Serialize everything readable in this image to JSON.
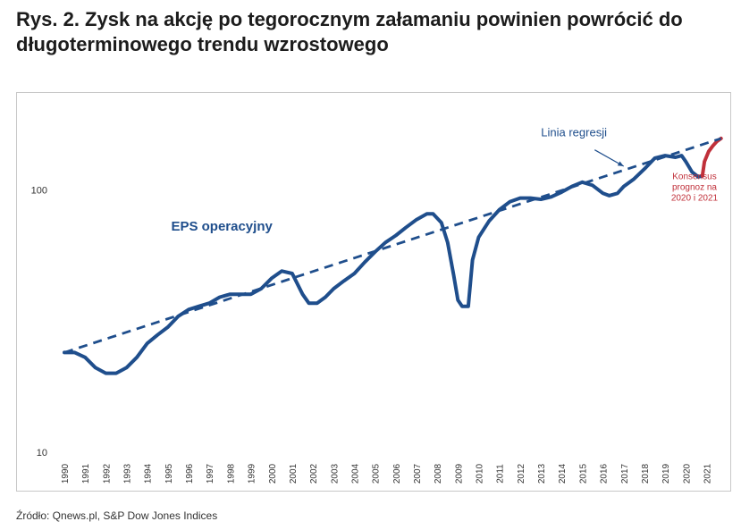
{
  "title": "Rys. 2. Zysk na akcję po tegorocznym załamaniu powinien powrócić do długoterminowego trendu wzrostowego",
  "source": "Źródło: Qnews.pl, S&P Dow Jones Indices",
  "colors": {
    "eps": "#1f4e8c",
    "consensus": "#c0303a",
    "regression": "#1f4e8c",
    "axis": "#333333"
  },
  "chart_data": {
    "type": "line",
    "yscale": "log",
    "ylim": [
      10,
      200
    ],
    "xlim": [
      1990,
      2021.8
    ],
    "y_ticks": [
      {
        "value": 10,
        "label": "10"
      },
      {
        "value": 100,
        "label": "100"
      }
    ],
    "x_ticks": [
      "1990",
      "1991",
      "1992",
      "1993",
      "1994",
      "1995",
      "1996",
      "1997",
      "1998",
      "1999",
      "2000",
      "2001",
      "2002",
      "2003",
      "2004",
      "2005",
      "2006",
      "2007",
      "2008",
      "2009",
      "2010",
      "2011",
      "2012",
      "2013",
      "2014",
      "2015",
      "2016",
      "2017",
      "2018",
      "2019",
      "2020",
      "2021"
    ],
    "grid": false,
    "series": [
      {
        "name": "EPS operacyjny",
        "style": "solid",
        "x": [
          1990.0,
          1990.5,
          1991.0,
          1991.5,
          1992.0,
          1992.5,
          1993.0,
          1993.5,
          1994.0,
          1994.5,
          1995.0,
          1995.5,
          1996.0,
          1996.5,
          1997.0,
          1997.5,
          1998.0,
          1998.5,
          1999.0,
          1999.5,
          2000.0,
          2000.5,
          2001.0,
          2001.5,
          2001.8,
          2002.2,
          2002.6,
          2003.0,
          2003.5,
          2004.0,
          2004.5,
          2005.0,
          2005.5,
          2006.0,
          2006.5,
          2007.0,
          2007.5,
          2007.8,
          2008.2,
          2008.5,
          2008.8,
          2009.0,
          2009.2,
          2009.5,
          2009.7,
          2010.0,
          2010.5,
          2011.0,
          2011.5,
          2012.0,
          2012.5,
          2013.0,
          2013.5,
          2014.0,
          2014.5,
          2015.0,
          2015.5,
          2016.0,
          2016.3,
          2016.7,
          2017.0,
          2017.5,
          2018.0,
          2018.5,
          2019.0,
          2019.5,
          2019.8,
          2020.0,
          2020.3,
          2020.6,
          2020.8
        ],
        "y": [
          24,
          24,
          23,
          21,
          20,
          20,
          21,
          23,
          26,
          28,
          30,
          33,
          35,
          36,
          37,
          39,
          40,
          40,
          40,
          42,
          46,
          49,
          48,
          40,
          37,
          37,
          39,
          42,
          45,
          48,
          53,
          58,
          63,
          67,
          72,
          77,
          81,
          81,
          75,
          63,
          47,
          38,
          36,
          36,
          54,
          66,
          76,
          84,
          90,
          93,
          93,
          92,
          94,
          98,
          103,
          107,
          104,
          97,
          95,
          97,
          103,
          110,
          120,
          132,
          135,
          133,
          135,
          128,
          117,
          112,
          113
        ]
      },
      {
        "name": "Konsensus prognoz na 2020 i 2021",
        "style": "solid",
        "x": [
          2020.8,
          2020.9,
          2021.1,
          2021.3,
          2021.5,
          2021.7
        ],
        "y": [
          113,
          128,
          140,
          147,
          153,
          157
        ]
      },
      {
        "name": "Linia regresji",
        "style": "dashed",
        "x": [
          1990.0,
          2021.7
        ],
        "y": [
          24,
          157
        ]
      }
    ],
    "annotations": [
      {
        "text": "EPS operacyjny",
        "x": 1997.6,
        "y": 70
      },
      {
        "text": "Linia regresji",
        "x": 2014.6,
        "y": 160
      },
      {
        "lines": [
          "Konsensus",
          "prognoz na",
          "2020 i 2021"
        ],
        "x": 2019.9,
        "y": 100
      }
    ]
  }
}
